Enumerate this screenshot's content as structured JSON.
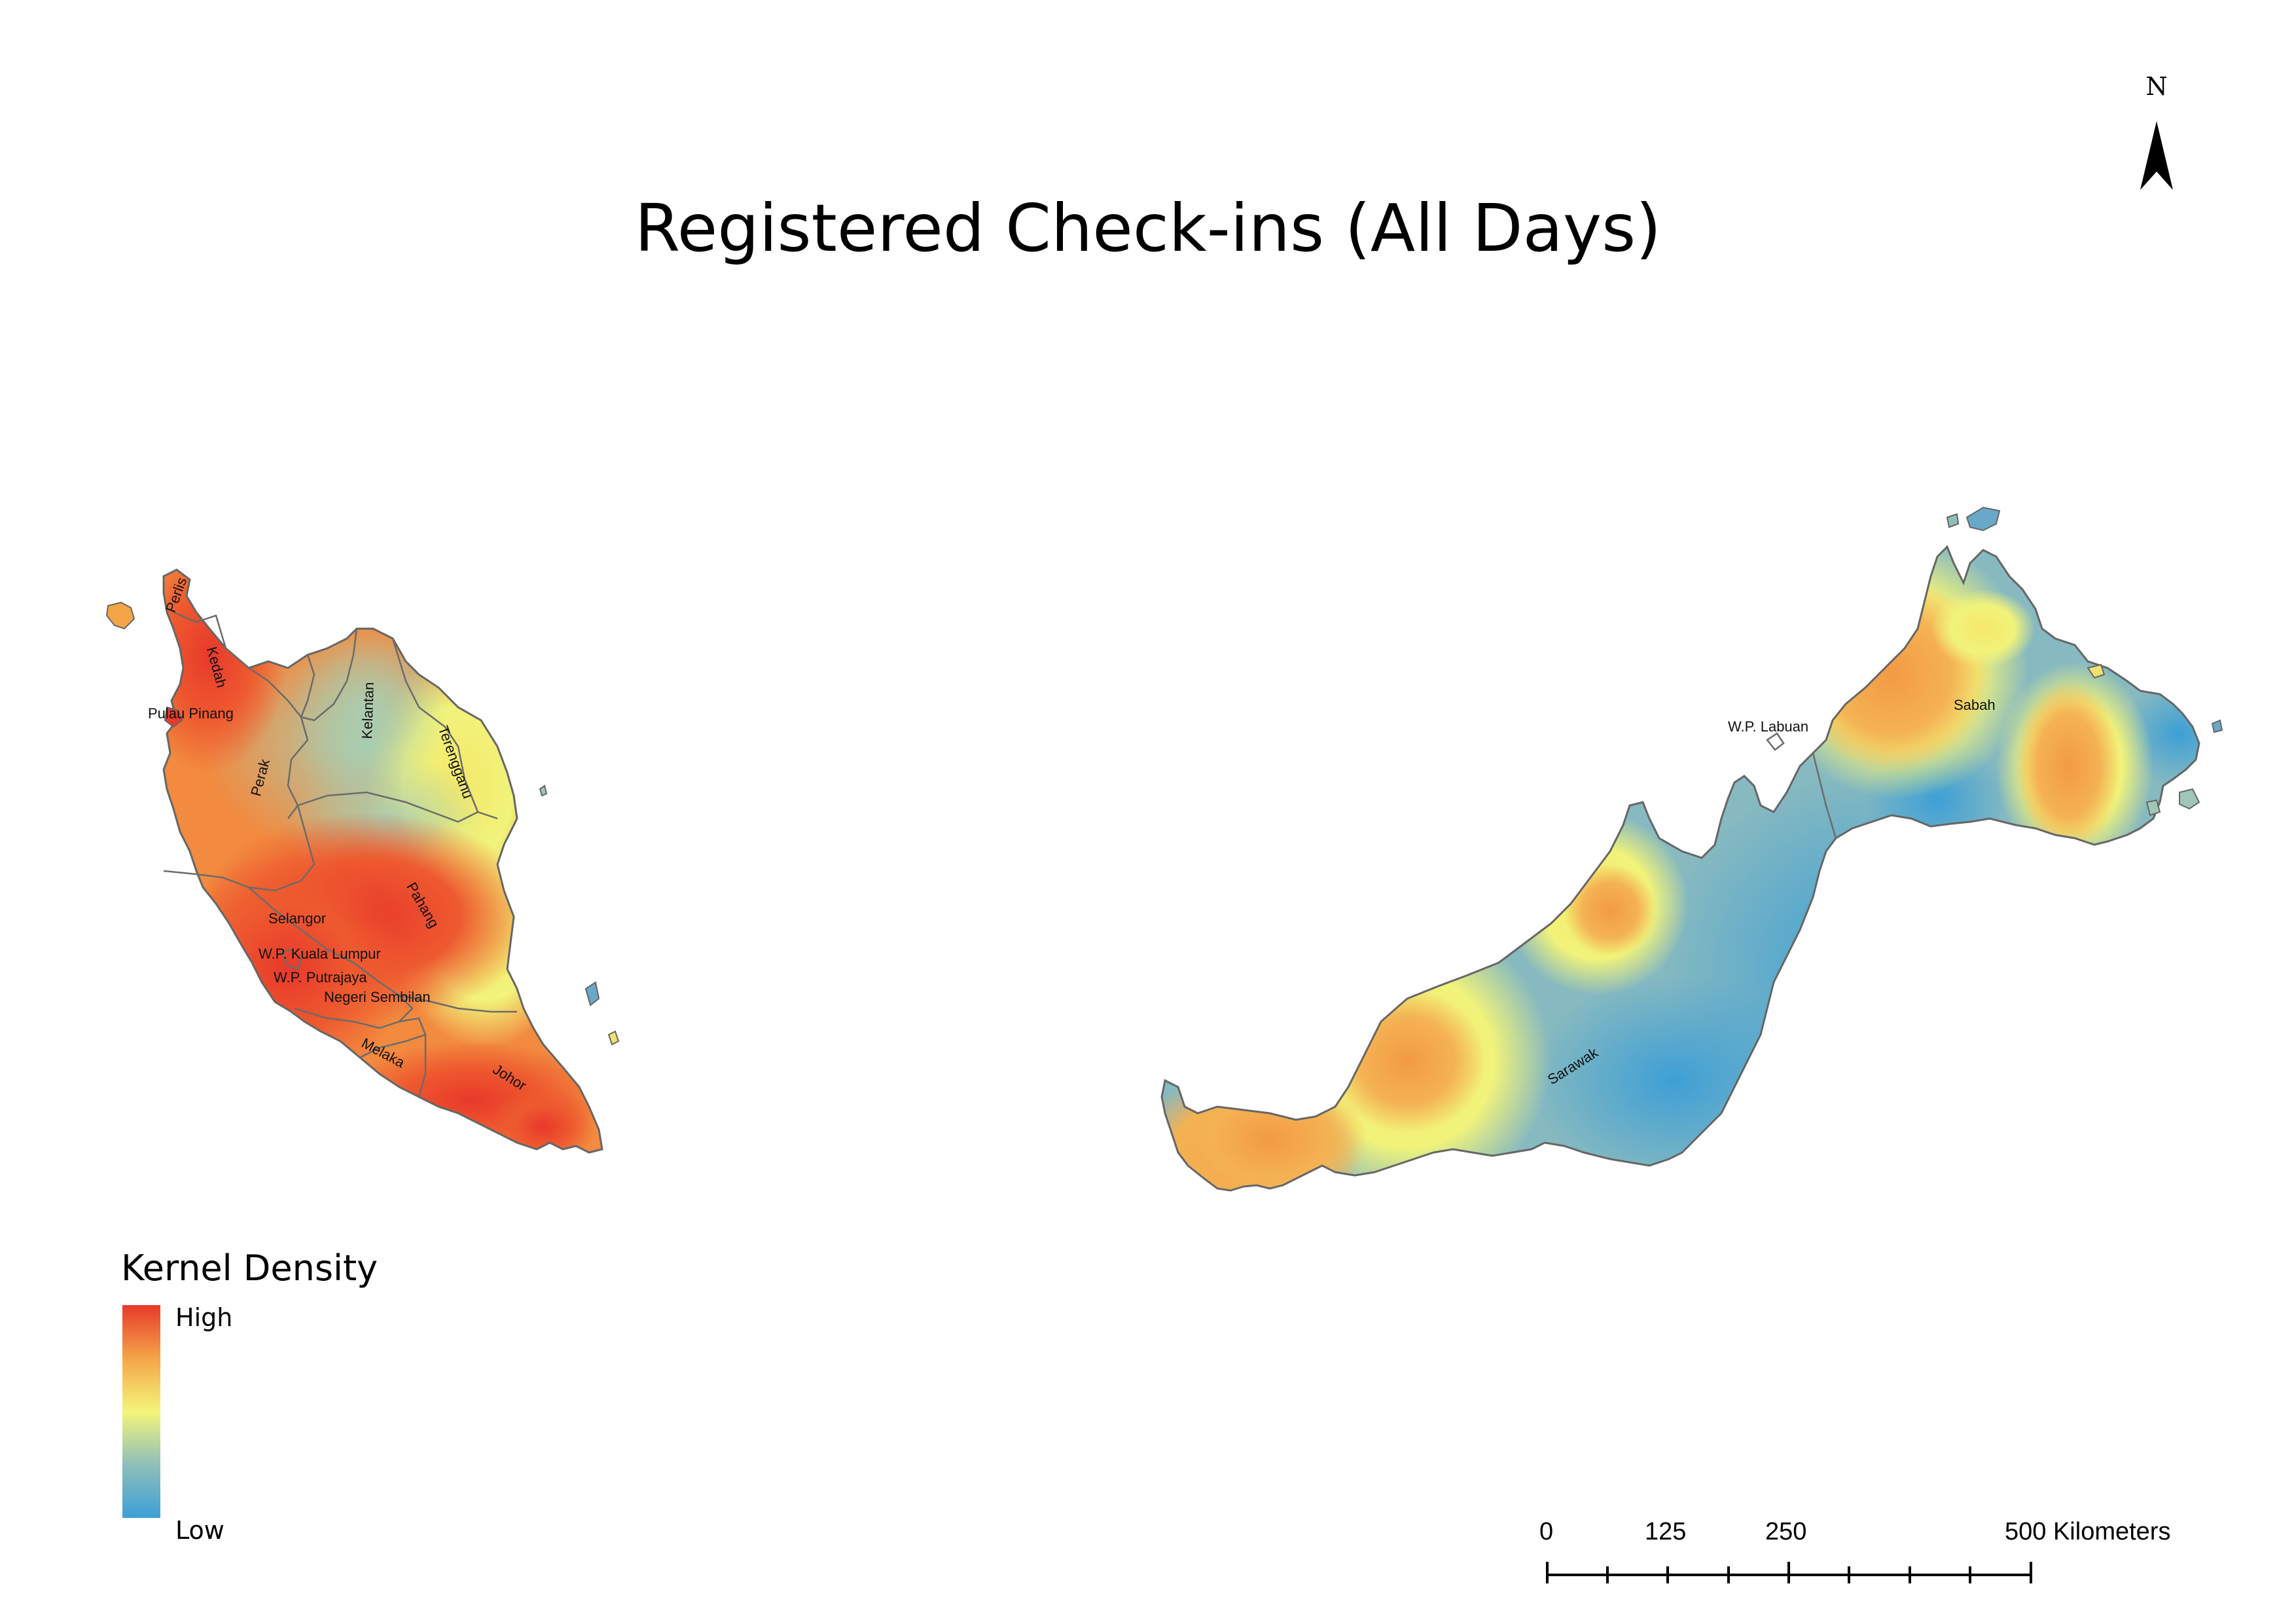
{
  "title": "Registered Check-ins (All Days)",
  "north_arrow": {
    "letter": "N"
  },
  "legend": {
    "title": "Kernel Density",
    "high_label": "High",
    "low_label": "Low",
    "ramp_colors": [
      "#e8392b",
      "#f4a548",
      "#f4f57a",
      "#8fbfb9",
      "#3d9fd6"
    ]
  },
  "scale_bar": {
    "ticks": [
      "0",
      "125",
      "250",
      "500 Kilometers"
    ]
  },
  "regions": {
    "peninsular": [
      "Perlis",
      "Kedah",
      "Pulau Pinang",
      "Perak",
      "Kelantan",
      "Terengganu",
      "Pahang",
      "Selangor",
      "W.P. Kuala Lumpur",
      "W.P. Putrajaya",
      "Negeri Sembilan",
      "Melaka",
      "Johor"
    ],
    "borneo": [
      "W.P. Labuan",
      "Sabah",
      "Sarawak"
    ]
  },
  "colors": {
    "high": "#e8392b",
    "mid_high": "#f4a548",
    "mid": "#f4f57a",
    "mid_low": "#8fbfb9",
    "low": "#3d9fd6",
    "border": "#666666"
  }
}
